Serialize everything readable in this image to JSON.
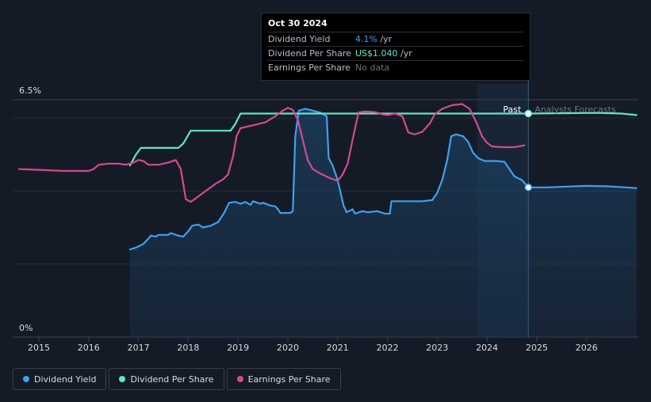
{
  "chart_data": {
    "type": "line",
    "title": "",
    "y_axis": {
      "top_label": "6.5%",
      "bottom_label": "0%",
      "ylim": [
        0,
        6.5
      ]
    },
    "x_axis": {
      "range": [
        2014.6,
        2027.05
      ],
      "ticks": [
        "2015",
        "2016",
        "2017",
        "2018",
        "2019",
        "2020",
        "2021",
        "2022",
        "2023",
        "2024",
        "2025",
        "2026"
      ]
    },
    "past_label": "Past",
    "forecast_label": "Analysts Forecasts",
    "forecast_start_year": 2024.83,
    "forecast_band_start_year": 2023.8,
    "series": [
      {
        "name": "Dividend Yield",
        "color": "#3fa0ec",
        "unit": "% (left axis)",
        "points": [
          [
            2016.83,
            2.4
          ],
          [
            2016.95,
            2.45
          ],
          [
            2017.1,
            2.55
          ],
          [
            2017.2,
            2.7
          ],
          [
            2017.25,
            2.78
          ],
          [
            2017.35,
            2.75
          ],
          [
            2017.4,
            2.8
          ],
          [
            2017.6,
            2.8
          ],
          [
            2017.65,
            2.85
          ],
          [
            2017.8,
            2.78
          ],
          [
            2017.9,
            2.75
          ],
          [
            2018.0,
            2.9
          ],
          [
            2018.08,
            3.05
          ],
          [
            2018.2,
            3.08
          ],
          [
            2018.3,
            3.0
          ],
          [
            2018.45,
            3.05
          ],
          [
            2018.6,
            3.15
          ],
          [
            2018.72,
            3.4
          ],
          [
            2018.82,
            3.68
          ],
          [
            2018.95,
            3.7
          ],
          [
            2019.05,
            3.65
          ],
          [
            2019.15,
            3.7
          ],
          [
            2019.25,
            3.62
          ],
          [
            2019.3,
            3.72
          ],
          [
            2019.45,
            3.65
          ],
          [
            2019.5,
            3.68
          ],
          [
            2019.65,
            3.6
          ],
          [
            2019.75,
            3.58
          ],
          [
            2019.8,
            3.5
          ],
          [
            2019.85,
            3.4
          ],
          [
            2019.95,
            3.4
          ],
          [
            2020.05,
            3.4
          ],
          [
            2020.1,
            3.45
          ],
          [
            2020.15,
            5.5
          ],
          [
            2020.22,
            6.2
          ],
          [
            2020.35,
            6.25
          ],
          [
            2020.5,
            6.2
          ],
          [
            2020.65,
            6.15
          ],
          [
            2020.78,
            6.05
          ],
          [
            2020.82,
            4.9
          ],
          [
            2020.9,
            4.7
          ],
          [
            2021.0,
            4.3
          ],
          [
            2021.12,
            3.6
          ],
          [
            2021.18,
            3.42
          ],
          [
            2021.3,
            3.5
          ],
          [
            2021.35,
            3.38
          ],
          [
            2021.5,
            3.45
          ],
          [
            2021.6,
            3.42
          ],
          [
            2021.8,
            3.45
          ],
          [
            2021.95,
            3.38
          ],
          [
            2022.05,
            3.38
          ],
          [
            2022.08,
            3.72
          ],
          [
            2022.3,
            3.72
          ],
          [
            2022.5,
            3.72
          ],
          [
            2022.7,
            3.72
          ],
          [
            2022.9,
            3.75
          ],
          [
            2023.0,
            3.95
          ],
          [
            2023.1,
            4.3
          ],
          [
            2023.2,
            4.85
          ],
          [
            2023.28,
            5.5
          ],
          [
            2023.38,
            5.55
          ],
          [
            2023.52,
            5.5
          ],
          [
            2023.62,
            5.35
          ],
          [
            2023.72,
            5.05
          ],
          [
            2023.82,
            4.9
          ],
          [
            2023.95,
            4.82
          ],
          [
            2024.2,
            4.82
          ],
          [
            2024.35,
            4.8
          ],
          [
            2024.45,
            4.6
          ],
          [
            2024.55,
            4.4
          ],
          [
            2024.7,
            4.3
          ],
          [
            2024.83,
            4.1
          ],
          [
            2025.2,
            4.1
          ],
          [
            2025.6,
            4.12
          ],
          [
            2026.0,
            4.14
          ],
          [
            2026.4,
            4.13
          ],
          [
            2026.8,
            4.1
          ],
          [
            2027.0,
            4.08
          ]
        ]
      },
      {
        "name": "Dividend Per Share",
        "color": "#5de6c7",
        "unit": "scaled",
        "points": [
          [
            2016.83,
            4.7
          ],
          [
            2016.95,
            5.0
          ],
          [
            2017.05,
            5.18
          ],
          [
            2017.15,
            5.18
          ],
          [
            2017.5,
            5.18
          ],
          [
            2017.8,
            5.18
          ],
          [
            2017.9,
            5.3
          ],
          [
            2018.05,
            5.65
          ],
          [
            2018.2,
            5.65
          ],
          [
            2018.6,
            5.65
          ],
          [
            2018.85,
            5.65
          ],
          [
            2018.95,
            5.85
          ],
          [
            2019.05,
            6.12
          ],
          [
            2019.3,
            6.12
          ],
          [
            2019.8,
            6.12
          ],
          [
            2020.5,
            6.12
          ],
          [
            2021.0,
            6.12
          ],
          [
            2022.0,
            6.12
          ],
          [
            2023.0,
            6.12
          ],
          [
            2024.0,
            6.12
          ],
          [
            2024.83,
            6.12
          ],
          [
            2025.5,
            6.13
          ],
          [
            2026.2,
            6.14
          ],
          [
            2026.7,
            6.12
          ],
          [
            2027.0,
            6.08
          ]
        ]
      },
      {
        "name": "Earnings Per Share",
        "color": "#d34a8e",
        "unit": "scaled",
        "points": [
          [
            2014.6,
            4.6
          ],
          [
            2015.0,
            4.58
          ],
          [
            2015.5,
            4.55
          ],
          [
            2016.0,
            4.55
          ],
          [
            2016.1,
            4.6
          ],
          [
            2016.2,
            4.72
          ],
          [
            2016.4,
            4.75
          ],
          [
            2016.6,
            4.75
          ],
          [
            2016.75,
            4.72
          ],
          [
            2016.9,
            4.78
          ],
          [
            2017.0,
            4.85
          ],
          [
            2017.1,
            4.82
          ],
          [
            2017.2,
            4.72
          ],
          [
            2017.4,
            4.72
          ],
          [
            2017.6,
            4.78
          ],
          [
            2017.75,
            4.85
          ],
          [
            2017.85,
            4.6
          ],
          [
            2017.9,
            4.2
          ],
          [
            2017.95,
            3.78
          ],
          [
            2018.05,
            3.7
          ],
          [
            2018.2,
            3.85
          ],
          [
            2018.4,
            4.05
          ],
          [
            2018.55,
            4.2
          ],
          [
            2018.7,
            4.32
          ],
          [
            2018.8,
            4.45
          ],
          [
            2018.9,
            4.95
          ],
          [
            2018.97,
            5.5
          ],
          [
            2019.05,
            5.72
          ],
          [
            2019.3,
            5.8
          ],
          [
            2019.55,
            5.88
          ],
          [
            2019.75,
            6.05
          ],
          [
            2019.9,
            6.2
          ],
          [
            2020.0,
            6.28
          ],
          [
            2020.1,
            6.22
          ],
          [
            2020.2,
            5.95
          ],
          [
            2020.3,
            5.4
          ],
          [
            2020.4,
            4.85
          ],
          [
            2020.5,
            4.6
          ],
          [
            2020.65,
            4.48
          ],
          [
            2020.85,
            4.35
          ],
          [
            2021.0,
            4.28
          ],
          [
            2021.1,
            4.45
          ],
          [
            2021.2,
            4.75
          ],
          [
            2021.3,
            5.4
          ],
          [
            2021.42,
            6.15
          ],
          [
            2021.55,
            6.18
          ],
          [
            2021.75,
            6.16
          ],
          [
            2021.9,
            6.1
          ],
          [
            2022.0,
            6.08
          ],
          [
            2022.15,
            6.12
          ],
          [
            2022.3,
            6.05
          ],
          [
            2022.42,
            5.6
          ],
          [
            2022.55,
            5.55
          ],
          [
            2022.7,
            5.62
          ],
          [
            2022.85,
            5.85
          ],
          [
            2022.95,
            6.1
          ],
          [
            2023.1,
            6.25
          ],
          [
            2023.3,
            6.35
          ],
          [
            2023.5,
            6.38
          ],
          [
            2023.65,
            6.25
          ],
          [
            2023.78,
            5.9
          ],
          [
            2023.9,
            5.5
          ],
          [
            2024.0,
            5.32
          ],
          [
            2024.1,
            5.22
          ],
          [
            2024.3,
            5.2
          ],
          [
            2024.55,
            5.2
          ],
          [
            2024.75,
            5.25
          ]
        ]
      }
    ]
  },
  "tooltip": {
    "date": "Oct 30 2024",
    "rows": [
      {
        "label": "Dividend Yield",
        "value": "4.1%",
        "unit": " /yr"
      },
      {
        "label": "Dividend Per Share",
        "value": "US$1.040",
        "unit": " /yr"
      },
      {
        "label": "Earnings Per Share",
        "value": "No data",
        "unit": ""
      }
    ]
  },
  "legend": [
    {
      "label": "Dividend Yield",
      "color": "#3fa0ec"
    },
    {
      "label": "Dividend Per Share",
      "color": "#5de6c7"
    },
    {
      "label": "Earnings Per Share",
      "color": "#d34a8e"
    }
  ]
}
